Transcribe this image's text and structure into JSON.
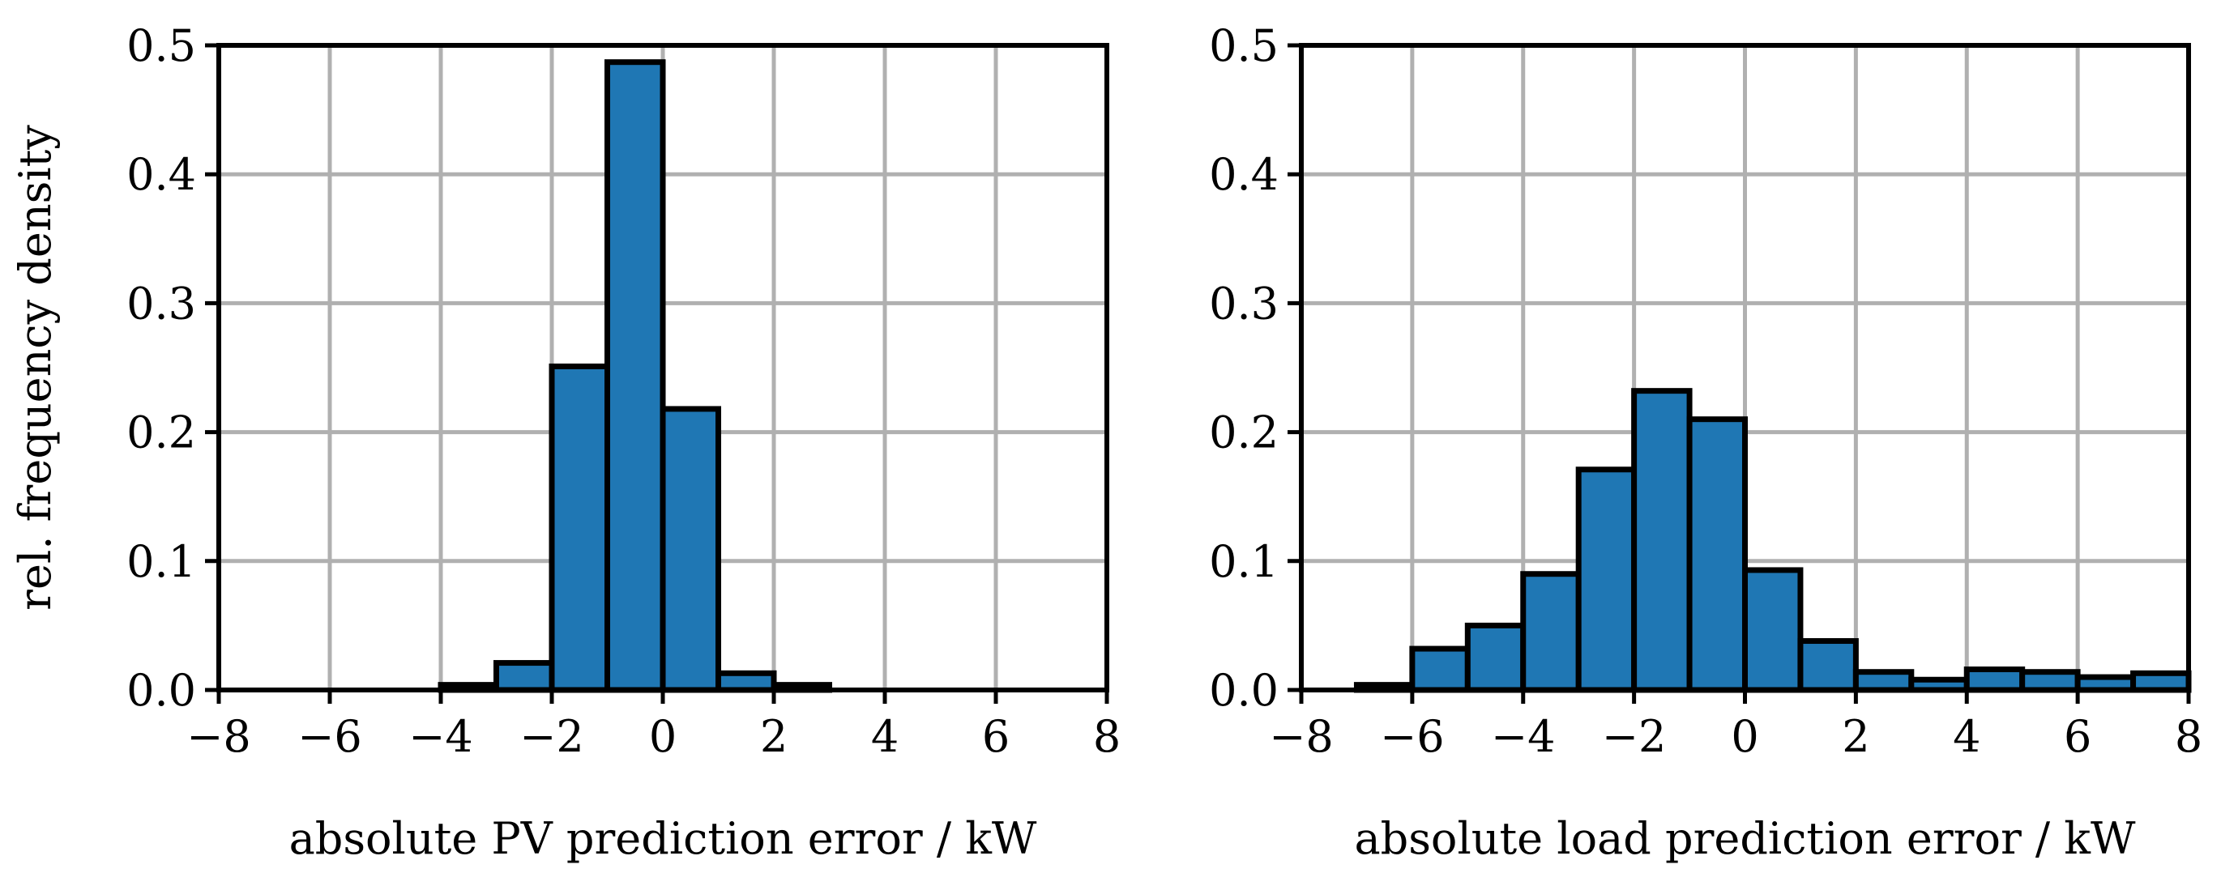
{
  "colors": {
    "bar_fill": "#1f77b4",
    "bar_edge": "#000000",
    "grid": "#b0b0b0",
    "frame": "#000000"
  },
  "chart_data": [
    {
      "type": "bar",
      "xlabel": "absolute PV prediction error / kW",
      "ylabel": "rel. frequency density",
      "xlim": [
        -8,
        8
      ],
      "ylim": [
        0,
        0.5
      ],
      "xticks": [
        -8,
        -6,
        -4,
        -2,
        0,
        2,
        4,
        6,
        8
      ],
      "xtick_labels": [
        "−8",
        "−6",
        "−4",
        "−2",
        "0",
        "2",
        "4",
        "6",
        "8"
      ],
      "yticks": [
        0.0,
        0.1,
        0.2,
        0.3,
        0.4,
        0.5
      ],
      "ytick_labels": [
        "0.0",
        "0.1",
        "0.2",
        "0.3",
        "0.4",
        "0.5"
      ],
      "grid": true,
      "bin_edges": [
        -8,
        -7,
        -6,
        -5,
        -4,
        -3,
        -2,
        -1,
        0,
        1,
        2,
        3,
        4,
        5,
        6,
        7,
        8
      ],
      "values": [
        0.0,
        0.0,
        0.0,
        0.0,
        0.004,
        0.021,
        0.251,
        0.487,
        0.218,
        0.013,
        0.004,
        0.0,
        0.0,
        0.0,
        0.0,
        0.0
      ]
    },
    {
      "type": "bar",
      "xlabel": "absolute load prediction error / kW",
      "ylabel": "",
      "xlim": [
        -8,
        8
      ],
      "ylim": [
        0,
        0.5
      ],
      "xticks": [
        -8,
        -6,
        -4,
        -2,
        0,
        2,
        4,
        6,
        8
      ],
      "xtick_labels": [
        "−8",
        "−6",
        "−4",
        "−2",
        "0",
        "2",
        "4",
        "6",
        "8"
      ],
      "yticks": [
        0.0,
        0.1,
        0.2,
        0.3,
        0.4,
        0.5
      ],
      "ytick_labels": [
        "0.0",
        "0.1",
        "0.2",
        "0.3",
        "0.4",
        "0.5"
      ],
      "grid": true,
      "bin_edges": [
        -8,
        -7,
        -6,
        -5,
        -4,
        -3,
        -2,
        -1,
        0,
        1,
        2,
        3,
        4,
        5,
        6,
        7,
        8
      ],
      "values": [
        0.0,
        0.004,
        0.032,
        0.05,
        0.09,
        0.171,
        0.232,
        0.21,
        0.093,
        0.038,
        0.014,
        0.008,
        0.016,
        0.014,
        0.01,
        0.013
      ]
    }
  ]
}
